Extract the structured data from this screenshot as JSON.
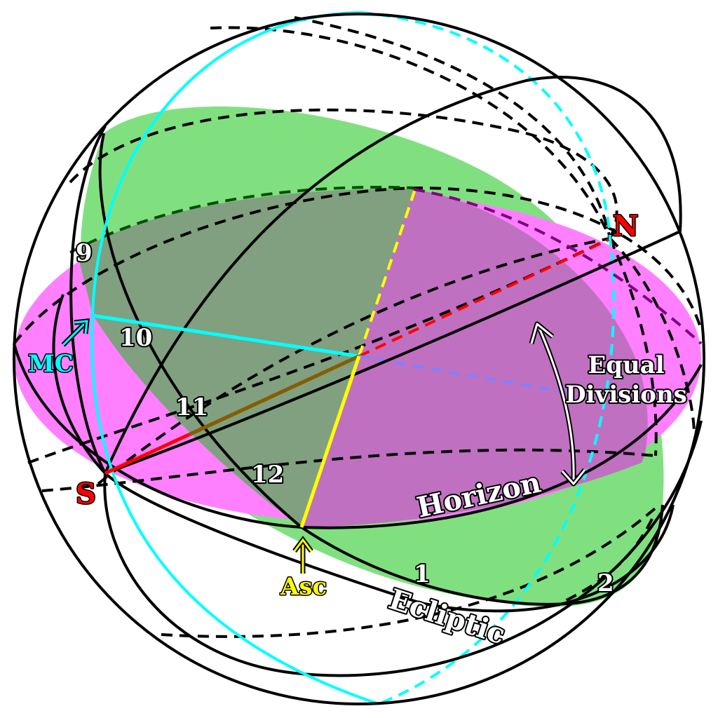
{
  "labels": {
    "north": "N",
    "south": "S",
    "mc": "MC",
    "asc": "Asc",
    "horizon": "Horizon",
    "ecliptic": "Ecliptic",
    "equal_line1": "Equal",
    "equal_line2": "Divisions"
  },
  "house_numbers": {
    "h9": "9",
    "h10": "10",
    "h11": "11",
    "h12": "12",
    "h1": "1",
    "h2": "2"
  },
  "colors": {
    "horizon_fill": "#ff80ff",
    "ecliptic_fill": "#80e080",
    "overlap_fill": "#80a080",
    "overlap_fill_2": "#c070c0",
    "meridian": "#00ffff",
    "ascendant": "#ffff00",
    "north_south": "#ff0000",
    "axis_blue": "#8080ff",
    "label_red": "#ff0000",
    "label_cyan": "#00ffff",
    "label_yellow": "#ffff00"
  }
}
